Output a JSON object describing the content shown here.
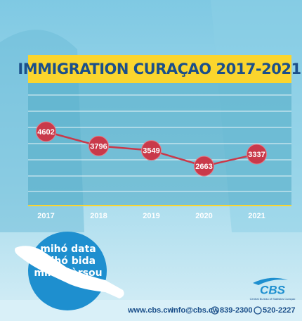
{
  "chart_data": {
    "type": "line",
    "title": "IMMIGRATION CURAÇAO 2017-2021",
    "categories": [
      "2017",
      "2018",
      "2019",
      "2020",
      "2021"
    ],
    "values": [
      4602,
      3796,
      3549,
      2663,
      3337
    ],
    "color": "#c9394a",
    "grid": true
  },
  "slogan": [
    "mihó data",
    "mihó bida",
    "mihó kòrsou"
  ],
  "logo": {
    "name": "CBS",
    "subtitle": "Central Bureau of Statistics Curaçao"
  },
  "footer": {
    "website": "www.cbs.cw",
    "email": "info@cbs.cw",
    "phone": "839-2300",
    "whatsapp": "520-2227"
  }
}
